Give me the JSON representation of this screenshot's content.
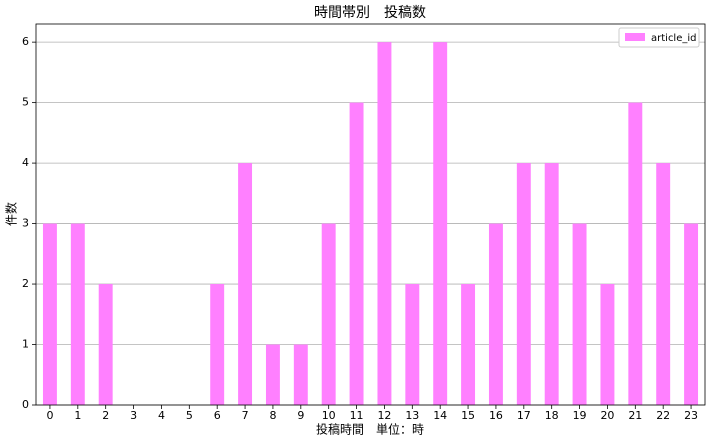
{
  "chart_data": {
    "type": "bar",
    "title": "時間帯別　投稿数",
    "x_label": "投稿時間　単位：時",
    "y_label": "件数",
    "categories": [
      "0",
      "1",
      "2",
      "3",
      "4",
      "5",
      "6",
      "7",
      "8",
      "9",
      "10",
      "11",
      "12",
      "13",
      "14",
      "15",
      "16",
      "17",
      "18",
      "19",
      "20",
      "21",
      "22",
      "23"
    ],
    "series": [
      {
        "name": "article_id",
        "color": "#ff80ff",
        "values": [
          3,
          3,
          2,
          0,
          0,
          0,
          2,
          4,
          1,
          1,
          3,
          5,
          6,
          2,
          6,
          2,
          3,
          4,
          4,
          3,
          2,
          5,
          4,
          3
        ]
      }
    ],
    "ylim": [
      0,
      6.3
    ],
    "yticks": [
      0,
      1,
      2,
      3,
      4,
      5,
      6
    ],
    "grid": true,
    "legend_position": "upper right"
  }
}
